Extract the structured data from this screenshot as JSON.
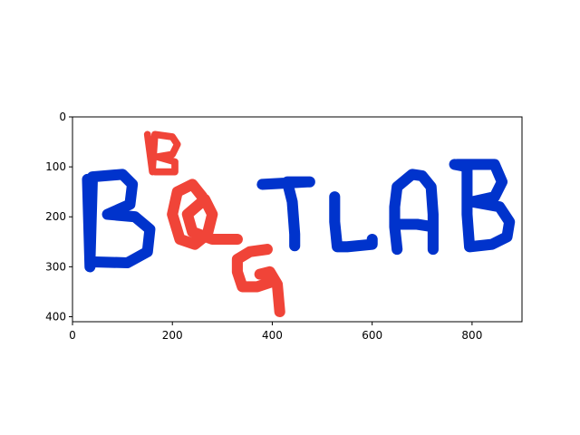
{
  "chart_data": {
    "type": "image",
    "title": "",
    "xlabel": "",
    "ylabel": "",
    "xlim": [
      0,
      900
    ],
    "ylim": [
      410,
      0
    ],
    "x_ticks": [
      0,
      200,
      400,
      600,
      800
    ],
    "y_ticks": [
      0,
      100,
      200,
      300,
      400
    ],
    "grid": false,
    "colors": {
      "blue": "#0033cc",
      "red": "#f04438"
    },
    "strokes": [
      {
        "name": "big-B",
        "color": "blue",
        "width": 22,
        "points": [
          [
            30,
            125
          ],
          [
            35,
            300
          ],
          [
            35,
            290
          ],
          [
            40,
            120
          ],
          [
            100,
            115
          ],
          [
            120,
            135
          ],
          [
            115,
            175
          ],
          [
            70,
            195
          ],
          [
            125,
            200
          ],
          [
            155,
            225
          ],
          [
            150,
            270
          ],
          [
            110,
            292
          ],
          [
            40,
            290
          ]
        ]
      },
      {
        "name": "small-B",
        "color": "red",
        "width": 14,
        "points": [
          [
            150,
            35
          ],
          [
            160,
            110
          ],
          [
            160,
            105
          ],
          [
            165,
            35
          ],
          [
            200,
            40
          ],
          [
            210,
            55
          ],
          [
            200,
            75
          ],
          [
            170,
            80
          ],
          [
            205,
            90
          ],
          [
            205,
            110
          ],
          [
            165,
            110
          ]
        ]
      },
      {
        "name": "Q",
        "color": "red",
        "width": 22,
        "points": [
          [
            260,
            160
          ],
          [
            240,
            135
          ],
          [
            210,
            150
          ],
          [
            200,
            195
          ],
          [
            215,
            245
          ],
          [
            245,
            255
          ],
          [
            270,
            235
          ],
          [
            280,
            195
          ],
          [
            265,
            165
          ],
          [
            230,
            195
          ],
          [
            240,
            230
          ],
          [
            280,
            245
          ],
          [
            330,
            245
          ]
        ]
      },
      {
        "name": "G",
        "color": "red",
        "width": 22,
        "points": [
          [
            390,
            265
          ],
          [
            355,
            270
          ],
          [
            330,
            285
          ],
          [
            330,
            310
          ],
          [
            340,
            340
          ],
          [
            370,
            340
          ],
          [
            400,
            330
          ],
          [
            395,
            310
          ],
          [
            375,
            315
          ],
          [
            395,
            310
          ],
          [
            410,
            335
          ],
          [
            415,
            390
          ]
        ]
      },
      {
        "name": "T",
        "color": "blue",
        "width": 22,
        "points": [
          [
            380,
            135
          ],
          [
            470,
            130
          ],
          [
            475,
            130
          ],
          [
            430,
            130
          ],
          [
            440,
            170
          ],
          [
            445,
            235
          ],
          [
            445,
            258
          ]
        ]
      },
      {
        "name": "L",
        "color": "blue",
        "width": 22,
        "points": [
          [
            525,
            160
          ],
          [
            525,
            210
          ],
          [
            530,
            260
          ],
          [
            550,
            260
          ],
          [
            600,
            255
          ],
          [
            600,
            245
          ]
        ]
      },
      {
        "name": "A",
        "color": "blue",
        "width": 22,
        "points": [
          [
            650,
            265
          ],
          [
            645,
            220
          ],
          [
            645,
            180
          ],
          [
            650,
            140
          ],
          [
            680,
            115
          ],
          [
            700,
            118
          ],
          [
            718,
            140
          ],
          [
            722,
            195
          ],
          [
            722,
            265
          ],
          [
            722,
            220
          ],
          [
            690,
            215
          ],
          [
            650,
            215
          ]
        ]
      },
      {
        "name": "final-B",
        "color": "blue",
        "width": 22,
        "points": [
          [
            765,
            95
          ],
          [
            790,
            100
          ],
          [
            790,
            195
          ],
          [
            795,
            260
          ],
          [
            840,
            255
          ],
          [
            870,
            240
          ],
          [
            875,
            210
          ],
          [
            855,
            180
          ],
          [
            800,
            170
          ],
          [
            845,
            160
          ],
          [
            860,
            130
          ],
          [
            845,
            95
          ],
          [
            805,
            95
          ],
          [
            770,
            95
          ]
        ]
      }
    ]
  }
}
